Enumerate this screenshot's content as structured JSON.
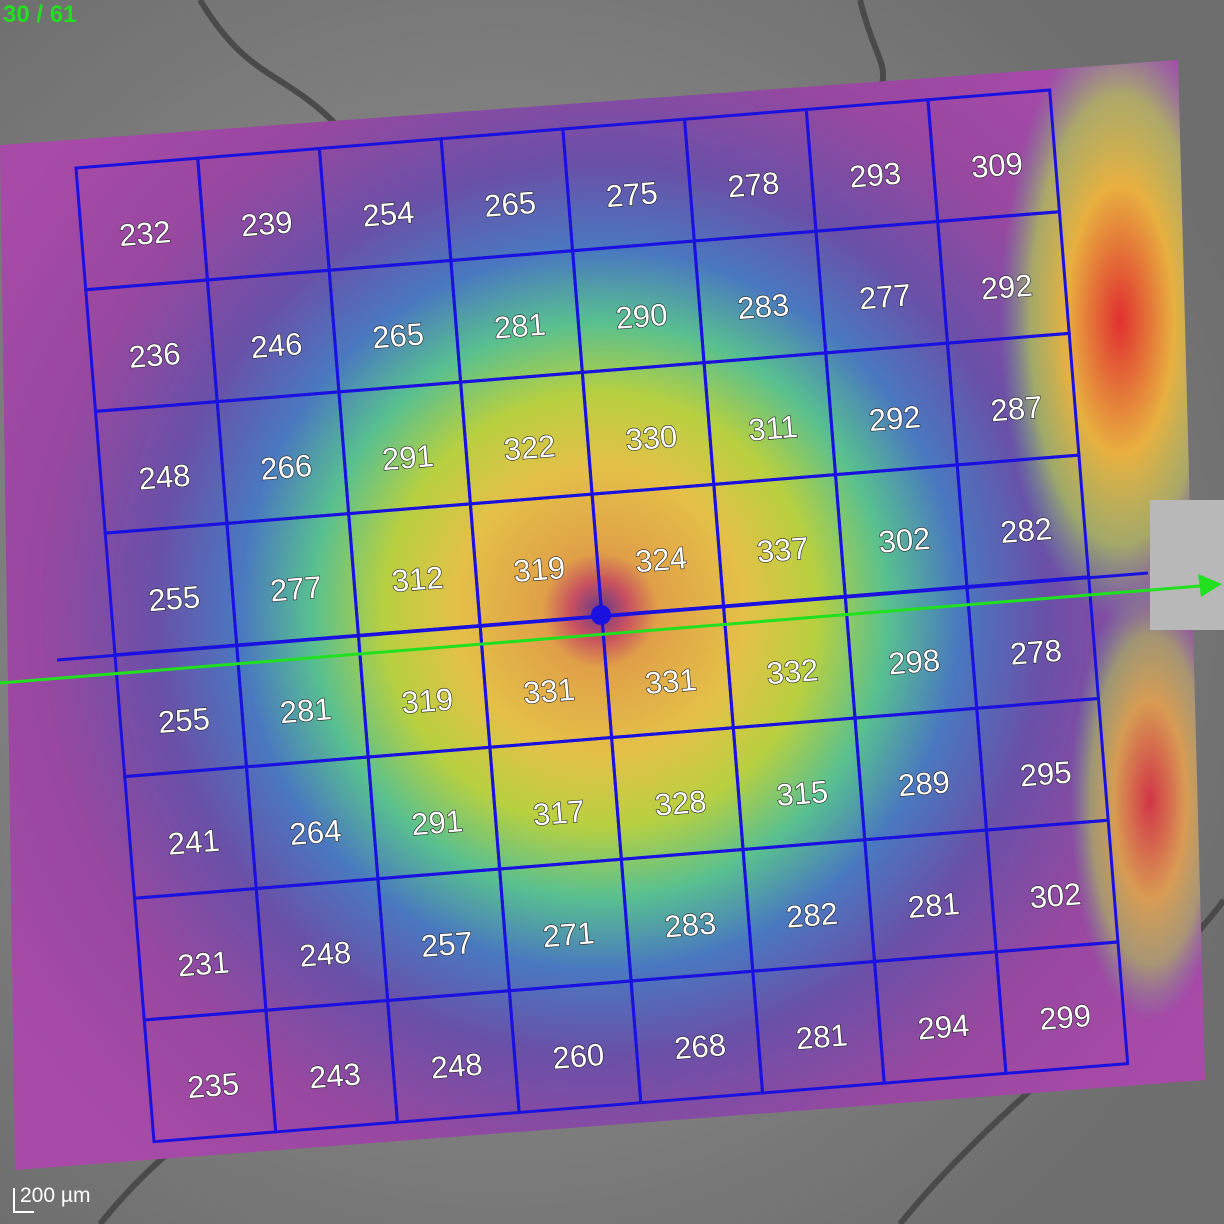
{
  "header": {
    "counter": "30 / 61"
  },
  "grid": {
    "rows": [
      [
        "232",
        "239",
        "254",
        "265",
        "275",
        "278",
        "293",
        "309"
      ],
      [
        "236",
        "246",
        "265",
        "281",
        "290",
        "283",
        "277",
        "292"
      ],
      [
        "248",
        "266",
        "291",
        "322",
        "330",
        "311",
        "292",
        "287"
      ],
      [
        "255",
        "277",
        "312",
        "319",
        "324",
        "337",
        "302",
        "282"
      ],
      [
        "255",
        "281",
        "319",
        "331",
        "331",
        "332",
        "298",
        "278"
      ],
      [
        "241",
        "264",
        "291",
        "317",
        "328",
        "315",
        "289",
        "295"
      ],
      [
        "231",
        "248",
        "257",
        "271",
        "283",
        "282",
        "281",
        "302"
      ],
      [
        "235",
        "243",
        "248",
        "260",
        "268",
        "281",
        "294",
        "299"
      ]
    ]
  },
  "scale": {
    "label": "200 µm"
  }
}
